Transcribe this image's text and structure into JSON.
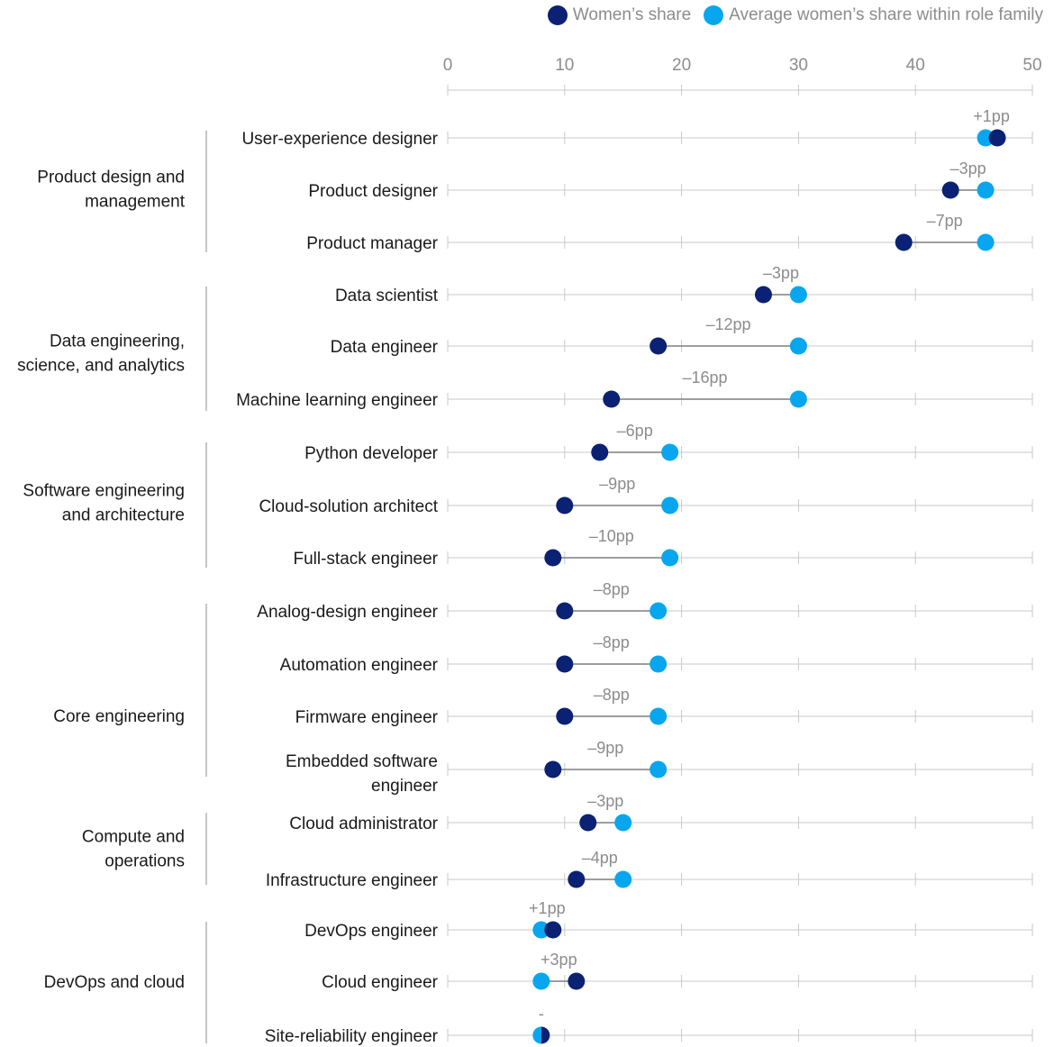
{
  "colors": {
    "womens_share": "#0b2173",
    "family_average": "#08a6ef",
    "connector": "#7f7f7f",
    "grid": "#c9c9c9",
    "label_text": "#1a1a1a",
    "gap_text": "#8c8c8c"
  },
  "legend": {
    "womens_share": "Women’s share",
    "family_average": "Average women’s share within role family"
  },
  "chart_data": {
    "type": "dumbbell",
    "title": "",
    "xlabel": "",
    "ylabel": "",
    "xlim": [
      0,
      50
    ],
    "xticks": [
      "0",
      "10",
      "20",
      "30",
      "40",
      "50"
    ],
    "series": [
      {
        "name": "Women’s share"
      },
      {
        "name": "Average women’s share within role family"
      }
    ],
    "groups": [
      {
        "family": "Product design and management",
        "roles": [
          {
            "role": "User-experience designer",
            "women": 47,
            "average": 46,
            "gap": "+1pp"
          },
          {
            "role": "Product designer",
            "women": 43,
            "average": 46,
            "gap": "–3pp"
          },
          {
            "role": "Product manager",
            "women": 39,
            "average": 46,
            "gap": "–7pp"
          }
        ]
      },
      {
        "family": "Data engineering, science, and analytics",
        "roles": [
          {
            "role": "Data scientist",
            "women": 27,
            "average": 30,
            "gap": "–3pp"
          },
          {
            "role": "Data engineer",
            "women": 18,
            "average": 30,
            "gap": "–12pp"
          },
          {
            "role": "Machine learning engineer",
            "women": 14,
            "average": 30,
            "gap": "–16pp"
          }
        ]
      },
      {
        "family": "Software engineering and architecture",
        "roles": [
          {
            "role": "Python developer",
            "women": 13,
            "average": 19,
            "gap": "–6pp"
          },
          {
            "role": "Cloud-solution architect",
            "women": 10,
            "average": 19,
            "gap": "–9pp"
          },
          {
            "role": "Full-stack engineer",
            "women": 9,
            "average": 19,
            "gap": "–10pp"
          }
        ]
      },
      {
        "family": "Core engineering",
        "roles": [
          {
            "role": "Analog-design engineer",
            "women": 10,
            "average": 18,
            "gap": "–8pp"
          },
          {
            "role": "Automation engineer",
            "women": 10,
            "average": 18,
            "gap": "–8pp"
          },
          {
            "role": "Firmware engineer",
            "women": 10,
            "average": 18,
            "gap": "–8pp"
          },
          {
            "role": "Embedded software engineer",
            "women": 9,
            "average": 18,
            "gap": "–9pp"
          }
        ]
      },
      {
        "family": "Compute and operations",
        "roles": [
          {
            "role": "Cloud administrator",
            "women": 12,
            "average": 15,
            "gap": "–3pp"
          },
          {
            "role": "Infrastructure engineer",
            "women": 11,
            "average": 15,
            "gap": "–4pp"
          }
        ]
      },
      {
        "family": "DevOps and cloud",
        "roles": [
          {
            "role": "DevOps engineer",
            "women": 9,
            "average": 8,
            "gap": "+1pp"
          },
          {
            "role": "Cloud engineer",
            "women": 11,
            "average": 8,
            "gap": "+3pp"
          },
          {
            "role": "Site-reliability engineer",
            "women": 8,
            "average": 8,
            "gap": "-"
          }
        ]
      }
    ]
  }
}
